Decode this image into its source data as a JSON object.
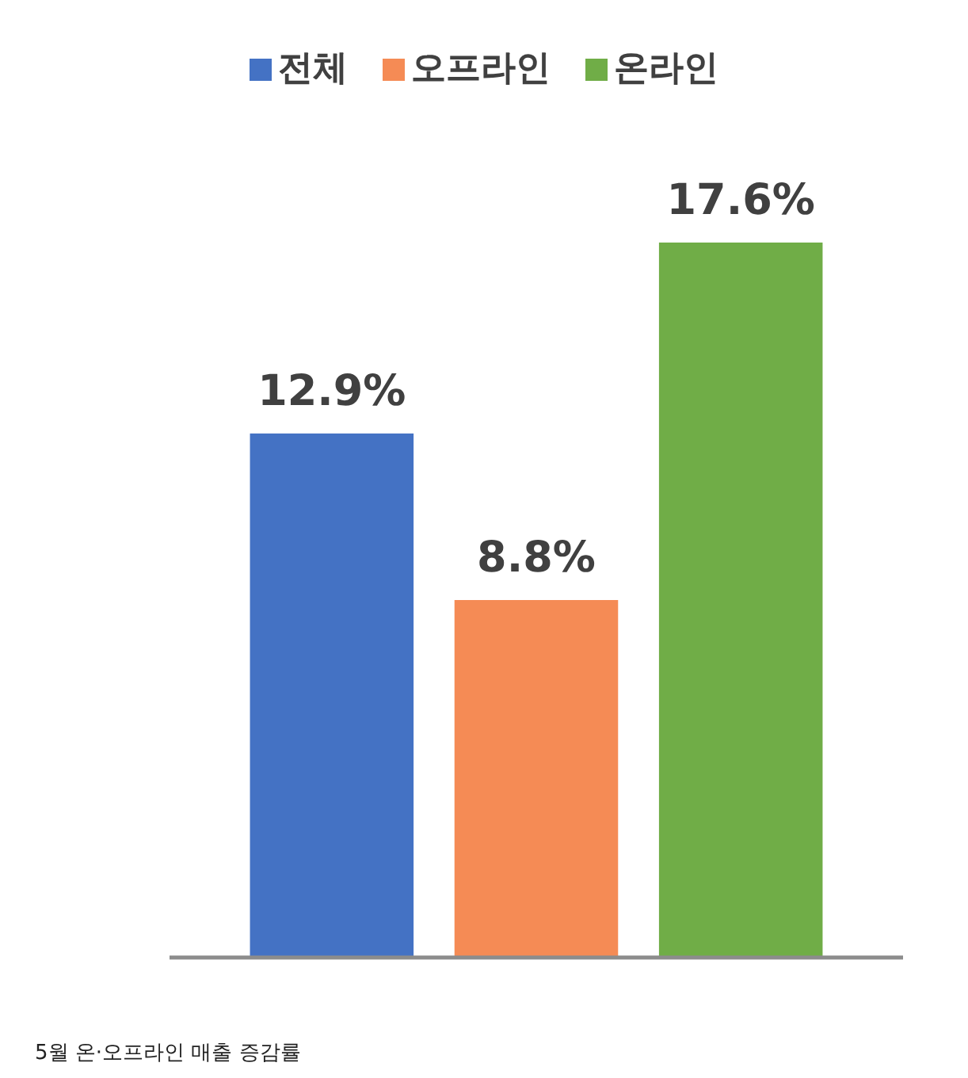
{
  "chart_data": {
    "type": "bar",
    "categories": [
      null
    ],
    "series": [
      {
        "name": "전체",
        "color": "#4472c4",
        "values": [
          12.9
        ],
        "value_labels": [
          "12.9%"
        ]
      },
      {
        "name": "오프라인",
        "color": "#f58b55",
        "values": [
          8.8
        ],
        "value_labels": [
          "8.8%"
        ]
      },
      {
        "name": "온라인",
        "color": "#70ad47",
        "values": [
          17.6
        ],
        "value_labels": [
          "17.6%"
        ]
      }
    ],
    "legend": "top",
    "annotations": [
      "5월 온·오프라인 매출 증감률"
    ]
  }
}
